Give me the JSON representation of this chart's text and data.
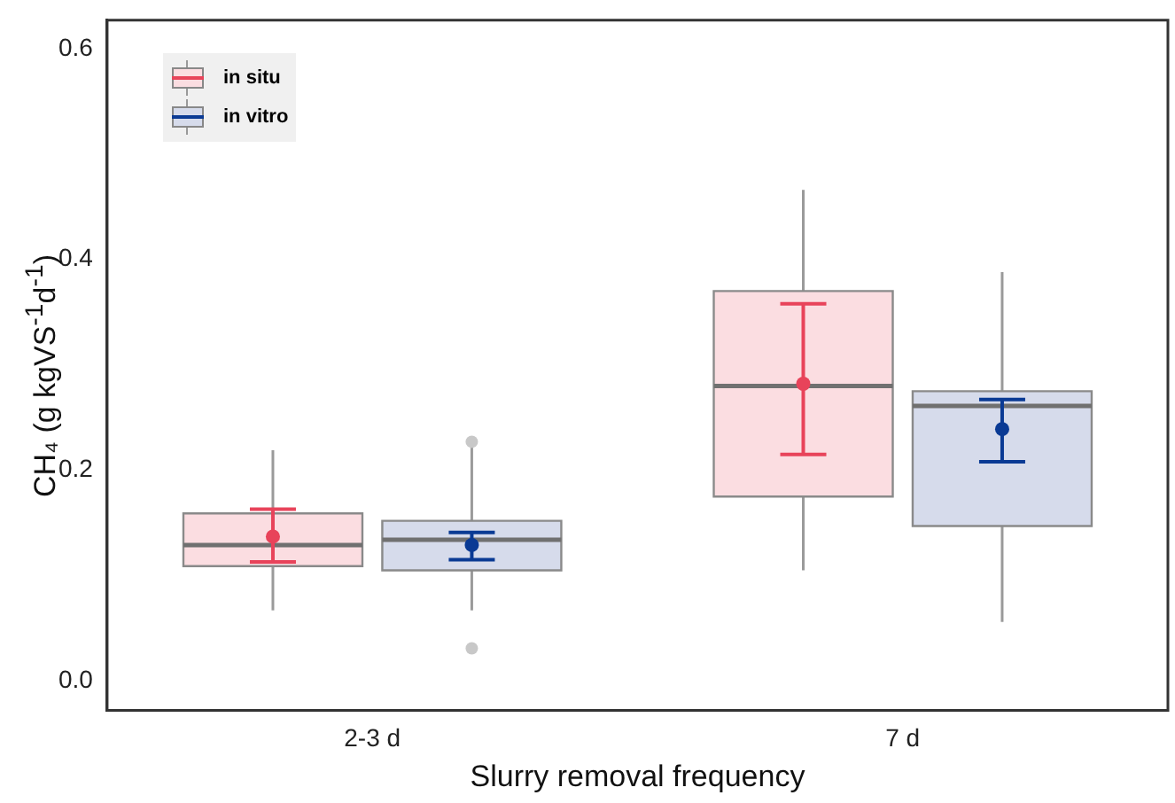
{
  "chart_data": {
    "type": "box",
    "xlabel": "Slurry removal frequency",
    "ylabel": "CH₄ (g kgVS$^{-1}$d$^{-1}$)",
    "categories": [
      "2-3 d",
      "7 d"
    ],
    "ylim": [
      -0.028,
      0.627
    ],
    "yticks": [
      {
        "value": 0,
        "label": "0.0"
      },
      {
        "value": 0.2,
        "label": "0.2"
      },
      {
        "value": 0.4,
        "label": "0.4"
      },
      {
        "value": 0.6,
        "label": "0.6"
      }
    ],
    "grid": false,
    "legend": "top left",
    "marker": "circle",
    "series": [
      {
        "name": "in situ",
        "color": "#fbdde1",
        "boxes": [
          {
            "low": 0.067,
            "q1": 0.109,
            "median": 0.129,
            "q3": 0.159,
            "high": 0.219
          },
          {
            "low": 0.105,
            "q1": 0.175,
            "median": 0.28,
            "q3": 0.37,
            "high": 0.466
          }
        ]
      },
      {
        "name": "in vitro",
        "color": "#d6dbeb",
        "boxes": [
          {
            "low": 0.067,
            "q1": 0.105,
            "median": 0.134,
            "q3": 0.152,
            "high": 0.222,
            "outliers": [
              0.227,
              0.031
            ]
          },
          {
            "low": 0.056,
            "q1": 0.147,
            "median": 0.261,
            "q3": 0.275,
            "high": 0.388
          }
        ]
      },
      {
        "type": "scatter",
        "color": "#e8435a",
        "x": [
          "2-3 d",
          "7 d"
        ],
        "values": [
          0.137,
          0.282
        ],
        "errors": [
          [
            0.113,
            0.163
          ],
          [
            0.215,
            0.358
          ]
        ]
      },
      {
        "type": "scatter",
        "color": "#0a3a94",
        "x": [
          "2-3 d",
          "7 d"
        ],
        "values": [
          0.129,
          0.239
        ],
        "errors": [
          [
            0.115,
            0.141
          ],
          [
            0.208,
            0.267
          ]
        ]
      }
    ]
  }
}
